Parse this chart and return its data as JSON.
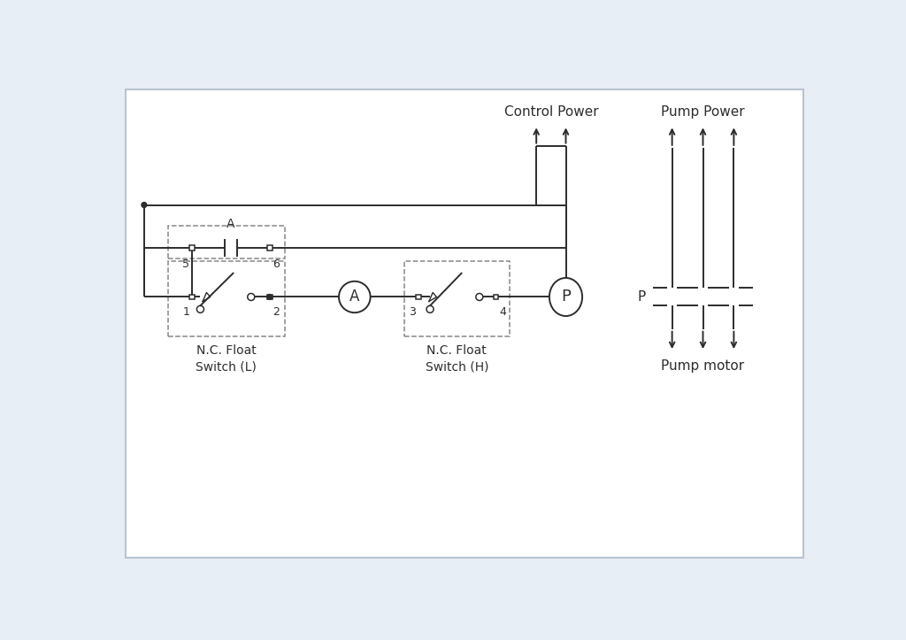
{
  "bg_color": "#e8eef5",
  "panel_color": "#ffffff",
  "panel_edge_color": "#b8c4d0",
  "line_color": "#2d2d2d",
  "dashed_color": "#888888",
  "figsize": [
    10.24,
    7.23
  ],
  "dpi": 100,
  "ctrl_power_label": "Control Power",
  "pump_power_label": "Pump Power",
  "pump_motor_label": "Pump motor",
  "switch_L_line1": "N.C. Float",
  "switch_L_line2": "Switch (L)",
  "switch_H_line1": "N.C. Float",
  "switch_H_line2": "Switch (H)",
  "relay_label": "A",
  "ammeter_label": "A",
  "pump_label": "P",
  "pump_power_P": "P",
  "lw": 1.4
}
